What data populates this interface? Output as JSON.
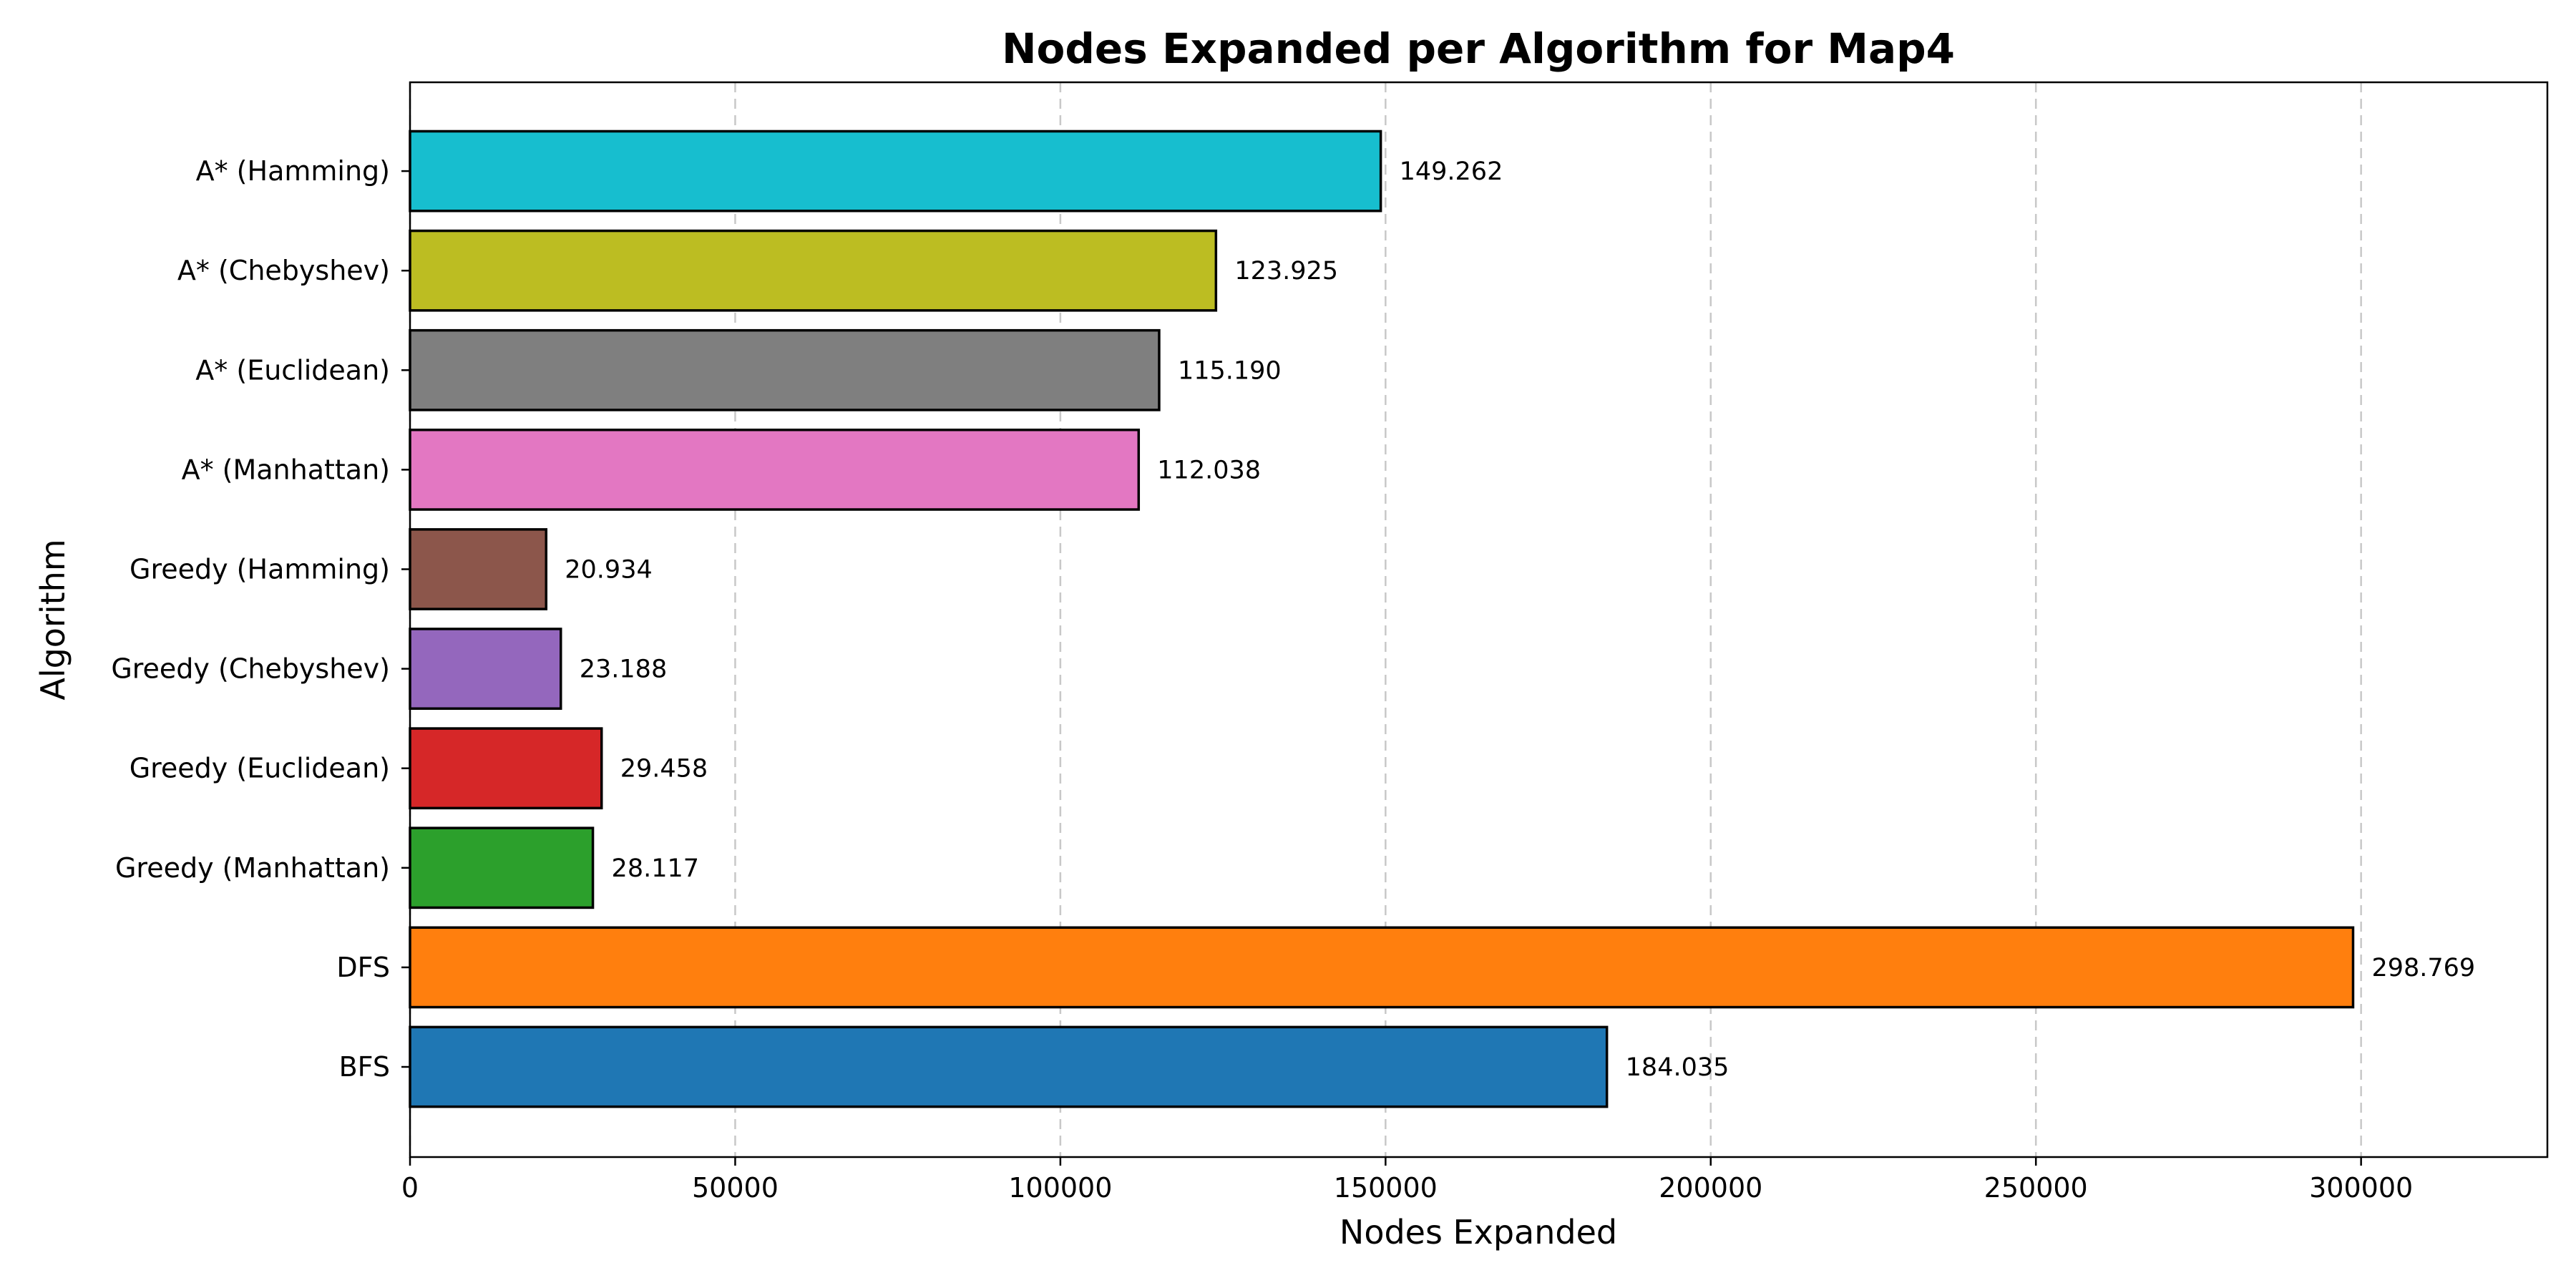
{
  "chart_data": {
    "type": "bar",
    "orientation": "horizontal",
    "title": "Nodes Expanded per Algorithm for Map4",
    "xlabel": "Nodes Expanded",
    "ylabel": "Algorithm",
    "xlim": [
      0,
      328645
    ],
    "x_ticks": [
      0,
      50000,
      100000,
      150000,
      200000,
      250000,
      300000
    ],
    "x_tick_labels": [
      "0",
      "50000",
      "100000",
      "150000",
      "200000",
      "250000",
      "300000"
    ],
    "grid": "vertical dashed",
    "categories": [
      "BFS",
      "DFS",
      "Greedy (Manhattan)",
      "Greedy (Euclidean)",
      "Greedy (Chebyshev)",
      "Greedy (Hamming)",
      "A* (Manhattan)",
      "A* (Euclidean)",
      "A* (Chebyshev)",
      "A* (Hamming)"
    ],
    "values": [
      184035,
      298769,
      28117,
      29458,
      23188,
      20934,
      112038,
      115190,
      123925,
      149262
    ],
    "value_labels": [
      "184.035",
      "298.769",
      "28.117",
      "29.458",
      "23.188",
      "20.934",
      "112.038",
      "115.190",
      "123.925",
      "149.262"
    ],
    "colors": [
      "#1f77b4",
      "#ff7f0e",
      "#2ca02c",
      "#d62728",
      "#9467bd",
      "#8c564b",
      "#e377c2",
      "#7f7f7f",
      "#bcbd22",
      "#17becf"
    ]
  }
}
